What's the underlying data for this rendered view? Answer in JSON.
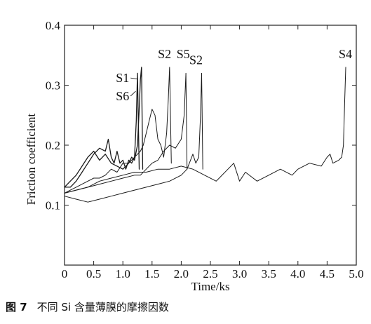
{
  "caption": {
    "figure_number": "图 7",
    "text": "不同 Si 含量薄膜的摩擦因数"
  },
  "chart_data": {
    "type": "line",
    "xlabel": "Time/ks",
    "ylabel": "Friction coefficient",
    "xlim": [
      0,
      5.0
    ],
    "ylim": [
      0,
      0.4
    ],
    "xticks": [
      0,
      0.5,
      1.0,
      1.5,
      2.0,
      2.5,
      3.0,
      3.5,
      4.0,
      4.5,
      5.0
    ],
    "xtick_labels": [
      "0",
      "0.5",
      "1.0",
      "1.5",
      "2.0",
      "2.5",
      "3.0",
      "3.5",
      "4.0",
      "4.5",
      "5.0"
    ],
    "yticks": [
      0.1,
      0.2,
      0.3,
      0.4
    ],
    "ytick_labels": [
      "0.1",
      "0.2",
      "0.3",
      "0.4"
    ],
    "grid": false,
    "colors": {
      "line": "#1a1a1a",
      "axis": "#222222"
    },
    "series": [
      {
        "name": "S1",
        "stroke_width": 1.3,
        "x": [
          0,
          0.1,
          0.2,
          0.3,
          0.4,
          0.5,
          0.6,
          0.7,
          0.8,
          0.9,
          1.0,
          1.05,
          1.1,
          1.15,
          1.2,
          1.25,
          1.28,
          1.3,
          1.32,
          1.34
        ],
        "y": [
          0.13,
          0.14,
          0.15,
          0.165,
          0.18,
          0.19,
          0.175,
          0.185,
          0.17,
          0.165,
          0.16,
          0.165,
          0.17,
          0.18,
          0.175,
          0.2,
          0.26,
          0.31,
          0.33,
          0.16
        ]
      },
      {
        "name": "S6",
        "stroke_width": 1.3,
        "x": [
          0,
          0.1,
          0.2,
          0.3,
          0.4,
          0.5,
          0.6,
          0.7,
          0.75,
          0.8,
          0.85,
          0.9,
          0.95,
          1.0,
          1.05,
          1.1,
          1.15,
          1.2,
          1.23,
          1.25,
          1.28
        ],
        "y": [
          0.13,
          0.13,
          0.14,
          0.155,
          0.17,
          0.185,
          0.195,
          0.19,
          0.21,
          0.18,
          0.17,
          0.19,
          0.17,
          0.175,
          0.16,
          0.175,
          0.17,
          0.18,
          0.24,
          0.32,
          0.16
        ]
      },
      {
        "name": "S2",
        "stroke_width": 1.0,
        "x": [
          0,
          0.1,
          0.2,
          0.3,
          0.4,
          0.5,
          0.6,
          0.7,
          0.8,
          0.9,
          1.0,
          1.1,
          1.2,
          1.3,
          1.35,
          1.4,
          1.45,
          1.5,
          1.55,
          1.6,
          1.65,
          1.7,
          1.75,
          1.78,
          1.8,
          1.83
        ],
        "y": [
          0.12,
          0.125,
          0.13,
          0.135,
          0.14,
          0.145,
          0.145,
          0.15,
          0.16,
          0.155,
          0.17,
          0.17,
          0.18,
          0.19,
          0.2,
          0.22,
          0.24,
          0.26,
          0.25,
          0.21,
          0.2,
          0.18,
          0.22,
          0.28,
          0.33,
          0.17
        ]
      },
      {
        "name": "S5",
        "stroke_width": 1.0,
        "x": [
          0,
          0.2,
          0.4,
          0.6,
          0.8,
          1.0,
          1.2,
          1.3,
          1.4,
          1.5,
          1.6,
          1.7,
          1.8,
          1.9,
          2.0,
          2.05,
          2.08,
          2.1
        ],
        "y": [
          0.12,
          0.125,
          0.13,
          0.135,
          0.14,
          0.145,
          0.15,
          0.15,
          0.16,
          0.17,
          0.175,
          0.19,
          0.2,
          0.195,
          0.21,
          0.25,
          0.32,
          0.16
        ]
      },
      {
        "name": "S2",
        "stroke_width": 1.0,
        "x": [
          0,
          0.2,
          0.4,
          0.6,
          0.8,
          1.0,
          1.2,
          1.4,
          1.6,
          1.8,
          2.0,
          2.1,
          2.2,
          2.25,
          2.3,
          2.33,
          2.35,
          2.37
        ],
        "y": [
          0.115,
          0.11,
          0.105,
          0.11,
          0.115,
          0.12,
          0.125,
          0.13,
          0.135,
          0.14,
          0.15,
          0.16,
          0.185,
          0.17,
          0.18,
          0.25,
          0.32,
          0.16
        ]
      },
      {
        "name": "S4",
        "stroke_width": 1.0,
        "x": [
          0,
          0.2,
          0.4,
          0.6,
          0.8,
          1.0,
          1.2,
          1.4,
          1.6,
          1.8,
          2.0,
          2.2,
          2.4,
          2.6,
          2.8,
          2.9,
          3.0,
          3.1,
          3.3,
          3.5,
          3.7,
          3.9,
          4.0,
          4.2,
          4.4,
          4.5,
          4.55,
          4.6,
          4.7,
          4.75,
          4.78,
          4.8,
          4.82
        ],
        "y": [
          0.12,
          0.125,
          0.13,
          0.14,
          0.145,
          0.15,
          0.155,
          0.155,
          0.16,
          0.16,
          0.165,
          0.16,
          0.15,
          0.14,
          0.16,
          0.17,
          0.14,
          0.155,
          0.14,
          0.15,
          0.16,
          0.15,
          0.16,
          0.17,
          0.165,
          0.18,
          0.185,
          0.17,
          0.175,
          0.18,
          0.2,
          0.27,
          0.33
        ]
      }
    ],
    "annotations": [
      {
        "text": "S1",
        "x": 0.88,
        "y": 0.305,
        "leader_to": {
          "x": 1.26,
          "y": 0.31
        }
      },
      {
        "text": "S6",
        "x": 0.88,
        "y": 0.275,
        "leader_to": {
          "x": 1.22,
          "y": 0.29
        }
      },
      {
        "text": "S2",
        "x": 1.6,
        "y": 0.345
      },
      {
        "text": "S5",
        "x": 1.92,
        "y": 0.345
      },
      {
        "text": "S2",
        "x": 2.14,
        "y": 0.335
      },
      {
        "text": "S4",
        "x": 4.7,
        "y": 0.345
      }
    ]
  }
}
